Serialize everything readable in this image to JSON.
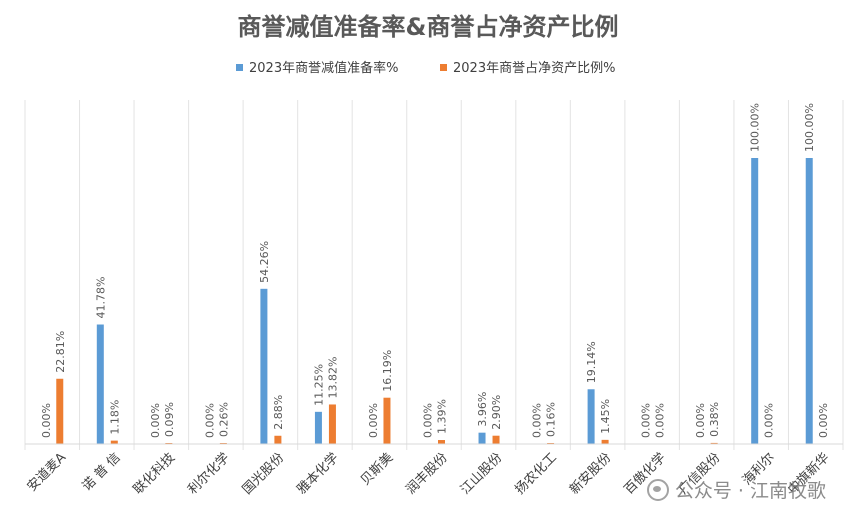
{
  "watermark": {
    "text": "公众号 · 江南牧歌",
    "icon": "wechat-icon"
  },
  "chart_data": {
    "type": "bar",
    "title": "商誉减值准备率&商誉占净资产比例",
    "legend_position": "top",
    "grid": false,
    "ylim": [
      0,
      100
    ],
    "categories": [
      "安道麦A",
      "诺 普 信",
      "联化科技",
      "利尔化学",
      "国光股份",
      "雅本化学",
      "贝斯美",
      "润丰股份",
      "江山股份",
      "扬农化工",
      "新安股份",
      "百傲化学",
      "广信股份",
      "海利尔",
      "中旗新华"
    ],
    "series": [
      {
        "name": "2023年商誉减值准备率%",
        "color": "#5B9BD5",
        "values": [
          0,
          41.78,
          0,
          0,
          54.26,
          11.25,
          0,
          0,
          3.96,
          0,
          19.14,
          0,
          0,
          100,
          100
        ],
        "labels": [
          "0.00%",
          "41.78%",
          "0.00%",
          "0.00%",
          "54.26%",
          "11.25%",
          "0.00%",
          "0.00%",
          "3.96%",
          "0.00%",
          "19.14%",
          "0.00%",
          "0.00%",
          "100.00%",
          "100.00%"
        ]
      },
      {
        "name": "2023年商誉占净资产比例%",
        "color": "#ED7D31",
        "values": [
          22.81,
          1.18,
          0.09,
          0.26,
          2.88,
          13.82,
          16.19,
          1.39,
          2.9,
          0.16,
          1.45,
          0,
          0.38,
          0,
          0
        ],
        "labels": [
          "22.81%",
          "1.18%",
          "0.09%",
          "0.26%",
          "2.88%",
          "13.82%",
          "16.19%",
          "1.39%",
          "2.90%",
          "0.16%",
          "1.45%",
          "0.00%",
          "0.38%",
          "0.00%",
          "0.00%"
        ]
      }
    ]
  }
}
